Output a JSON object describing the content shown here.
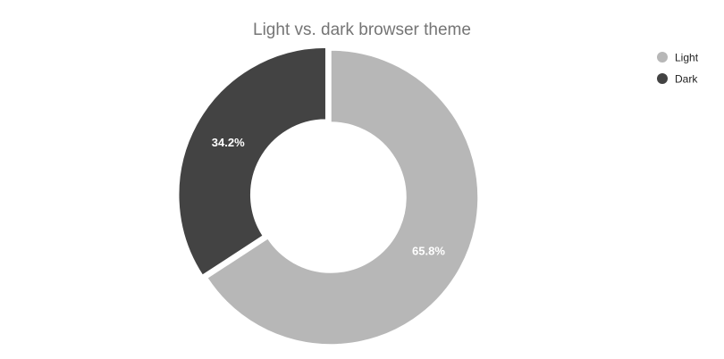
{
  "chart_data": {
    "type": "pie",
    "donut": true,
    "title": "Light vs. dark browser theme",
    "legend_position": "top-right",
    "slices": [
      {
        "name": "Light",
        "value": 65.8,
        "label": "65.8%",
        "color": "#b7b7b7"
      },
      {
        "name": "Dark",
        "value": 34.2,
        "label": "34.2%",
        "color": "#434343"
      }
    ],
    "exploded_slice": "Dark"
  }
}
